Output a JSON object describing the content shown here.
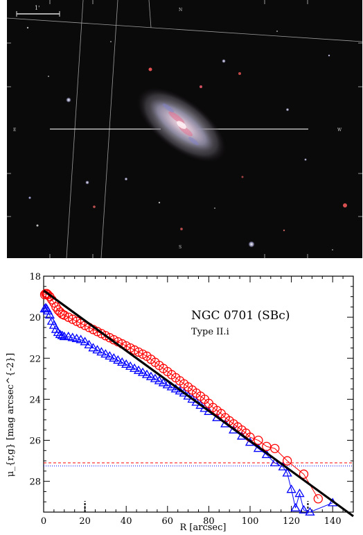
{
  "image": {
    "scale_bar_label": "1'",
    "compass_north": "N",
    "compass_east": "E",
    "compass_west": "W",
    "compass_south": "S"
  },
  "colors": {
    "r_band": "#ff0000",
    "g_band": "#0000ff",
    "fit": "#000000"
  },
  "chart_data": {
    "type": "scatter",
    "title": "NGC 0701 (SBc)",
    "subtitle": "Type II.i",
    "xlabel": "R [arcsec]",
    "ylabel": "μ_{r,g} [mag arcsec^{-2}]",
    "xlim": [
      0,
      150
    ],
    "ylim": [
      29.5,
      18
    ],
    "x_ticks": [
      "0",
      "20",
      "40",
      "60",
      "80",
      "100",
      "120",
      "140"
    ],
    "y_ticks": [
      "18",
      "20",
      "22",
      "24",
      "26",
      "28"
    ],
    "break_markers_x": [
      20,
      128
    ],
    "sky_limits": {
      "r": 27.1,
      "g": 27.25
    },
    "series": [
      {
        "name": "r",
        "marker": "circle",
        "x": [
          0.5,
          1,
          1.5,
          2,
          3,
          4,
          5,
          6,
          7,
          8,
          9,
          10,
          12,
          14,
          16,
          18,
          20,
          22,
          24,
          26,
          28,
          30,
          32,
          34,
          36,
          38,
          40,
          42,
          44,
          46,
          48,
          50,
          52,
          54,
          56,
          58,
          60,
          62,
          64,
          66,
          68,
          70,
          72,
          74,
          76,
          78,
          80,
          82,
          84,
          86,
          88,
          90,
          92,
          94,
          96,
          98,
          100,
          104,
          108,
          112,
          118,
          126,
          133
        ],
        "y": [
          18.9,
          18.85,
          18.85,
          18.9,
          19.0,
          19.15,
          19.3,
          19.5,
          19.65,
          19.75,
          19.85,
          19.9,
          20.0,
          20.1,
          20.2,
          20.3,
          20.4,
          20.5,
          20.6,
          20.7,
          20.8,
          20.9,
          21.0,
          21.1,
          21.2,
          21.3,
          21.4,
          21.5,
          21.6,
          21.7,
          21.8,
          21.9,
          22.05,
          22.2,
          22.35,
          22.5,
          22.65,
          22.8,
          22.95,
          23.1,
          23.25,
          23.4,
          23.55,
          23.7,
          23.85,
          24.0,
          24.2,
          24.4,
          24.55,
          24.7,
          24.9,
          25.05,
          25.2,
          25.35,
          25.5,
          25.65,
          25.85,
          26.0,
          26.3,
          26.4,
          27.0,
          27.65,
          28.85
        ]
      },
      {
        "name": "g",
        "marker": "triangle",
        "x": [
          0.5,
          1,
          1.5,
          2,
          3,
          4,
          5,
          6,
          7,
          8,
          9,
          10,
          12,
          14,
          16,
          18,
          20,
          22,
          24,
          26,
          28,
          30,
          32,
          34,
          36,
          38,
          40,
          42,
          44,
          46,
          48,
          50,
          52,
          54,
          56,
          58,
          60,
          62,
          64,
          66,
          68,
          70,
          72,
          74,
          76,
          78,
          80,
          84,
          88,
          92,
          96,
          100,
          104,
          108,
          112,
          116,
          118,
          120,
          122,
          124,
          126,
          129,
          140
        ],
        "y": [
          19.6,
          19.55,
          19.6,
          19.7,
          19.9,
          20.2,
          20.4,
          20.6,
          20.75,
          20.85,
          20.9,
          20.95,
          20.95,
          21.0,
          21.05,
          21.1,
          21.2,
          21.35,
          21.5,
          21.6,
          21.7,
          21.8,
          21.9,
          22.0,
          22.1,
          22.2,
          22.3,
          22.4,
          22.5,
          22.6,
          22.7,
          22.8,
          22.9,
          23.0,
          23.1,
          23.2,
          23.3,
          23.4,
          23.5,
          23.6,
          23.7,
          23.85,
          24.0,
          24.15,
          24.3,
          24.45,
          24.6,
          24.9,
          25.2,
          25.5,
          25.8,
          26.1,
          26.4,
          26.7,
          27.1,
          27.3,
          27.6,
          28.4,
          29.3,
          28.6,
          29.4,
          29.5,
          29.05
        ]
      },
      {
        "name": "fit",
        "marker": "line",
        "x": [
          0,
          150
        ],
        "y": [
          18.7,
          29.7
        ]
      }
    ]
  }
}
